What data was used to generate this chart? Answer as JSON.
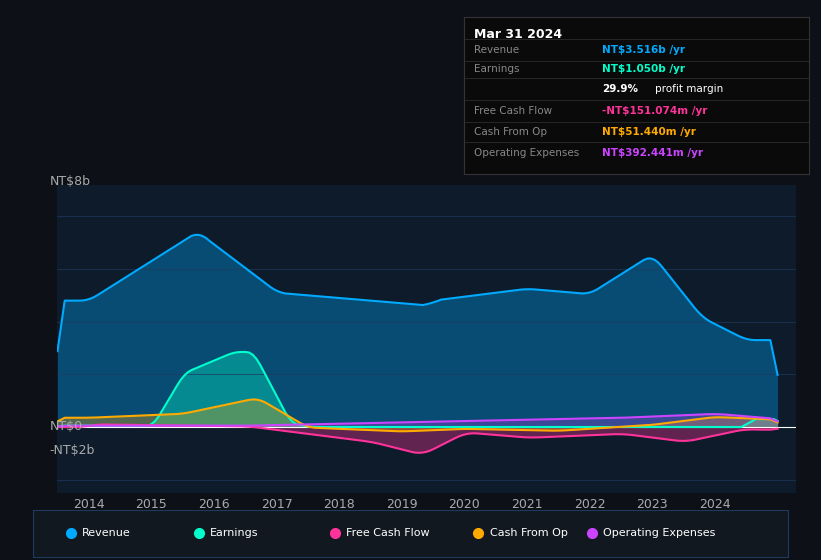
{
  "bg_color": "#0d1117",
  "plot_bg_color": "#0d1b2a",
  "grid_color": "#1e3a5f",
  "zero_line_color": "#ffffff",
  "ylabel_top": "NT$8b",
  "ylabel_bottom": "-NT$2b",
  "ylabel_zero": "NT$0",
  "x_labels": [
    "2014",
    "2015",
    "2016",
    "2017",
    "2018",
    "2019",
    "2020",
    "2021",
    "2022",
    "2023",
    "2024"
  ],
  "colors": {
    "revenue": "#00aaff",
    "earnings": "#00ffcc",
    "free_cash_flow": "#ff3399",
    "cash_from_op": "#ffaa00",
    "operating_expenses": "#cc44ff"
  },
  "legend": [
    {
      "label": "Revenue",
      "color": "#00aaff"
    },
    {
      "label": "Earnings",
      "color": "#00ffcc"
    },
    {
      "label": "Free Cash Flow",
      "color": "#ff3399"
    },
    {
      "label": "Cash From Op",
      "color": "#ffaa00"
    },
    {
      "label": "Operating Expenses",
      "color": "#cc44ff"
    }
  ],
  "info_box": {
    "title": "Mar 31 2024",
    "rows": [
      {
        "label": "Revenue",
        "value": "NT$3.516b /yr",
        "color": "#00aaff"
      },
      {
        "label": "Earnings",
        "value": "NT$1.050b /yr",
        "color": "#00ffcc"
      },
      {
        "label": "",
        "value": "29.9% profit margin",
        "color": "#ffffff"
      },
      {
        "label": "Free Cash Flow",
        "value": "-NT$151.074m /yr",
        "color": "#ff3399"
      },
      {
        "label": "Cash From Op",
        "value": "NT$51.440m /yr",
        "color": "#ffaa00"
      },
      {
        "label": "Operating Expenses",
        "value": "NT$392.441m /yr",
        "color": "#cc44ff"
      }
    ]
  },
  "ylim_min": -2.5,
  "ylim_max": 9.2,
  "xlim_min": 2013.0,
  "xlim_max": 2024.8
}
